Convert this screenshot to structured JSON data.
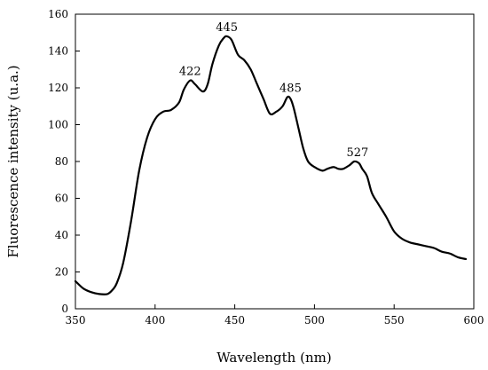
{
  "chart_data": {
    "type": "line",
    "xlabel": "Wavelength (nm)",
    "ylabel": "Fluorescence intensity (u.a.)",
    "xlim": [
      350,
      600
    ],
    "ylim": [
      0,
      160
    ],
    "xticks": [
      350,
      400,
      450,
      500,
      550,
      600
    ],
    "yticks": [
      0,
      20,
      40,
      60,
      80,
      100,
      120,
      140,
      160
    ],
    "grid": false,
    "series": [
      {
        "color": "#000000",
        "x": [
          350,
          355,
          360,
          365,
          370,
          373,
          376,
          380,
          385,
          390,
          395,
          400,
          405,
          410,
          415,
          418,
          422,
          425,
          430,
          433,
          436,
          440,
          443,
          445,
          448,
          452,
          456,
          460,
          464,
          468,
          472,
          476,
          480,
          483,
          485,
          487,
          490,
          493,
          496,
          500,
          505,
          508,
          512,
          515,
          518,
          522,
          525,
          528,
          530,
          533,
          536,
          540,
          545,
          550,
          555,
          560,
          565,
          570,
          575,
          580,
          585,
          590,
          595
        ],
        "y": [
          15,
          11,
          9,
          8,
          8,
          10,
          14,
          25,
          48,
          75,
          93,
          103,
          107,
          108,
          112,
          119,
          124,
          122,
          118,
          122,
          133,
          143,
          147,
          148,
          146,
          138,
          135,
          130,
          122,
          114,
          106,
          107,
          110,
          115,
          114,
          109,
          98,
          87,
          80,
          77,
          75,
          76,
          77,
          76,
          76,
          78,
          80,
          79,
          76,
          72,
          63,
          57,
          50,
          42,
          38,
          36,
          35,
          34,
          33,
          31,
          30,
          28,
          27
        ]
      }
    ],
    "annotations": [
      {
        "text": "422",
        "x": 422,
        "y": 124
      },
      {
        "text": "445",
        "x": 445,
        "y": 148
      },
      {
        "text": "485",
        "x": 485,
        "y": 115
      },
      {
        "text": "527",
        "x": 527,
        "y": 80
      }
    ]
  }
}
